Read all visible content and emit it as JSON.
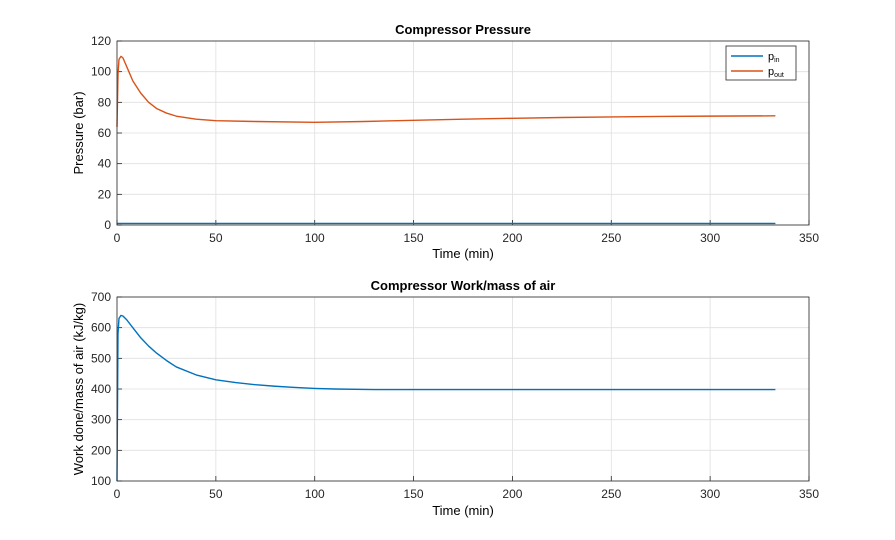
{
  "chart_data": [
    {
      "type": "line",
      "title": "Compressor Pressure",
      "xlabel": "Time (min)",
      "ylabel": "Pressure (bar)",
      "xlim": [
        0,
        350
      ],
      "ylim": [
        0,
        120
      ],
      "xticks": [
        "0",
        "50",
        "100",
        "150",
        "200",
        "250",
        "300",
        "350"
      ],
      "yticks": [
        "0",
        "20",
        "40",
        "60",
        "80",
        "100",
        "120"
      ],
      "grid": true,
      "legend": "top-right",
      "series": [
        {
          "name": "p",
          "name_sub": "in",
          "color": "#0072BD",
          "x": [
            0,
            50,
            100,
            150,
            200,
            250,
            300,
            333
          ],
          "y": [
            1,
            1,
            1,
            1,
            1,
            1,
            1,
            1
          ]
        },
        {
          "name": "p",
          "name_sub": "out",
          "color": "#D95319",
          "x": [
            0,
            0.5,
            1,
            2,
            3,
            5,
            8,
            12,
            16,
            20,
            25,
            30,
            40,
            50,
            70,
            100,
            125,
            150,
            175,
            200,
            225,
            250,
            275,
            300,
            333
          ],
          "y": [
            64,
            98,
            108,
            110,
            109,
            103,
            94,
            86,
            80,
            76,
            73,
            71,
            69,
            68,
            67.5,
            67,
            67.5,
            68.3,
            69,
            69.6,
            70.1,
            70.5,
            70.8,
            71,
            71.2
          ]
        }
      ]
    },
    {
      "type": "line",
      "title": "Compressor Work/mass of air",
      "xlabel": "Time (min)",
      "ylabel": "Work done/mass of air (kJ/kg)",
      "xlim": [
        0,
        350
      ],
      "ylim": [
        100,
        700
      ],
      "xticks": [
        "0",
        "50",
        "100",
        "150",
        "200",
        "250",
        "300",
        "350"
      ],
      "yticks": [
        "100",
        "200",
        "300",
        "400",
        "500",
        "600",
        "700"
      ],
      "grid": true,
      "series": [
        {
          "color": "#0072BD",
          "x": [
            0,
            0.5,
            1,
            2,
            3,
            5,
            8,
            12,
            16,
            20,
            25,
            30,
            40,
            50,
            60,
            70,
            80,
            90,
            100,
            110,
            130,
            150,
            200,
            250,
            300,
            333
          ],
          "y": [
            100,
            580,
            630,
            640,
            638,
            625,
            600,
            567,
            540,
            517,
            493,
            472,
            446,
            430,
            421,
            414,
            409,
            405,
            402,
            400,
            398,
            398,
            398,
            398,
            398,
            398
          ]
        }
      ]
    }
  ]
}
